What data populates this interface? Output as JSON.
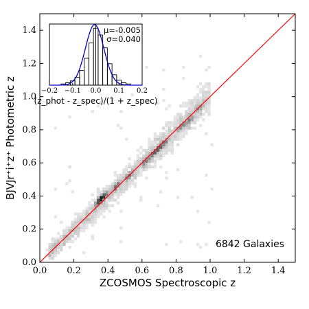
{
  "chart_data": [
    {
      "type": "heatmap",
      "xlabel": "ZCOSMOS Spectroscopic z",
      "ylabel": "BJVJr⁺i⁺z⁺ Photometric z",
      "xlim": [
        0.0,
        1.5
      ],
      "ylim": [
        0.0,
        1.5
      ],
      "xticks": [
        "0.0",
        "0.2",
        "0.4",
        "0.6",
        "0.8",
        "1.0",
        "1.2",
        "1.4"
      ],
      "yticks": [
        "0.0",
        "0.2",
        "0.4",
        "0.6",
        "0.8",
        "1.0",
        "1.2",
        "1.4"
      ],
      "grid": false,
      "reference_line": {
        "x": [
          0.0,
          1.5
        ],
        "y": [
          0.0,
          1.5
        ],
        "color": "#ff0000"
      },
      "annotation": "6842 Galaxies",
      "density": {
        "cell_size": 0.0167,
        "cluster_centers": [
          {
            "x": 0.35,
            "y": 0.37,
            "strength": 1.0
          },
          {
            "x": 0.36,
            "y": 0.39,
            "strength": 0.9
          },
          {
            "x": 0.38,
            "y": 0.4,
            "strength": 0.7
          },
          {
            "x": 0.45,
            "y": 0.46,
            "strength": 0.6
          },
          {
            "x": 0.52,
            "y": 0.52,
            "strength": 0.55
          },
          {
            "x": 0.62,
            "y": 0.61,
            "strength": 0.6
          },
          {
            "x": 0.67,
            "y": 0.66,
            "strength": 0.85
          },
          {
            "x": 0.7,
            "y": 0.69,
            "strength": 0.7
          },
          {
            "x": 0.73,
            "y": 0.72,
            "strength": 0.6
          },
          {
            "x": 0.83,
            "y": 0.82,
            "strength": 0.55
          },
          {
            "x": 0.88,
            "y": 0.86,
            "strength": 0.5
          },
          {
            "x": 0.93,
            "y": 0.93,
            "strength": 0.35
          }
        ]
      }
    },
    {
      "type": "bar",
      "xlabel": "(z_phot - z_spec)/(1 + z_spec)",
      "xlim": [
        -0.2,
        0.2
      ],
      "xticks": [
        "−0.2",
        "−0.1",
        "0.0",
        "0.1",
        "0.2"
      ],
      "bin_edges": [
        -0.15,
        -0.13,
        -0.11,
        -0.09,
        -0.07,
        -0.05,
        -0.03,
        -0.01,
        0.01,
        0.03,
        0.05,
        0.07,
        0.09,
        0.11,
        0.13,
        0.15
      ],
      "values": [
        0.02,
        0.04,
        0.07,
        0.13,
        0.24,
        0.44,
        0.69,
        0.93,
        0.82,
        0.61,
        0.35,
        0.17,
        0.08,
        0.04,
        0.02
      ],
      "fit": {
        "type": "gaussian",
        "mu": -0.005,
        "sigma": 0.04,
        "color": "#0000cc"
      },
      "vline_x": 0.0,
      "stats": [
        "μ=-0.005",
        "σ=0.040"
      ]
    }
  ]
}
